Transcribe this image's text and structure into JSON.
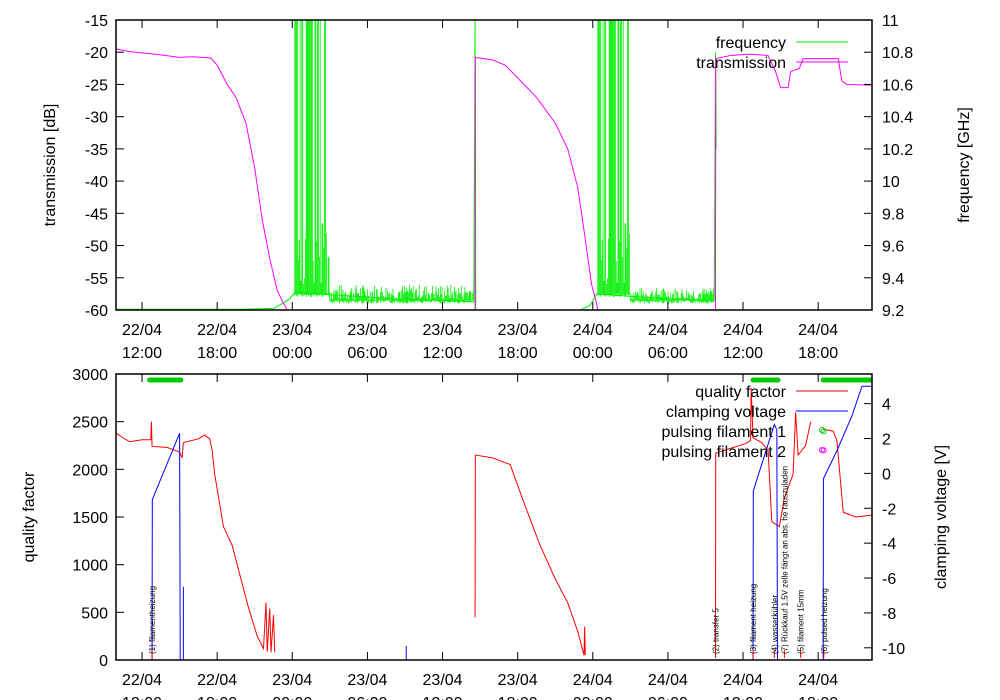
{
  "chart_data": [
    {
      "type": "line",
      "title": "",
      "xlabel": "",
      "x_unit": "hours since 22/04 00:00",
      "xlim": [
        9.92,
        70.3
      ],
      "x_ticks": [
        {
          "h": 12,
          "date": "22/04",
          "time": "12:00"
        },
        {
          "h": 18,
          "date": "22/04",
          "time": "18:00"
        },
        {
          "h": 24,
          "date": "23/04",
          "time": "00:00"
        },
        {
          "h": 30,
          "date": "23/04",
          "time": "06:00"
        },
        {
          "h": 36,
          "date": "23/04",
          "time": "12:00"
        },
        {
          "h": 42,
          "date": "23/04",
          "time": "18:00"
        },
        {
          "h": 48,
          "date": "24/04",
          "time": "00:00"
        },
        {
          "h": 54,
          "date": "24/04",
          "time": "06:00"
        },
        {
          "h": 60,
          "date": "24/04",
          "time": "12:00"
        },
        {
          "h": 66,
          "date": "24/04",
          "time": "18:00"
        }
      ],
      "ylabel": "transmission [dB]",
      "ylim": [
        -60,
        -15
      ],
      "y_ticks": [
        "-15",
        "-20",
        "-25",
        "-30",
        "-35",
        "-40",
        "-45",
        "-50",
        "-55",
        "-60"
      ],
      "y2label": "frequency [GHz]",
      "y2lim": [
        9.2,
        11
      ],
      "y2_ticks": [
        "11",
        "10.8",
        "10.6",
        "10.4",
        "10.2",
        "10",
        "9.8",
        "9.6",
        "9.4",
        "9.2"
      ],
      "legend_position": "top-right",
      "series": [
        {
          "name": "frequency",
          "axis": "y2",
          "color": "#00ee00",
          "segments": [
            [
              [
                9.92,
                9.205
              ],
              [
                20,
                9.205
              ],
              [
                22.5,
                9.21
              ],
              [
                23.2,
                9.24
              ],
              [
                23.8,
                9.27
              ],
              [
                24.2,
                9.31
              ],
              [
                26,
                9.3
              ],
              [
                28,
                9.29
              ],
              [
                32,
                9.27
              ],
              [
                36,
                9.26
              ],
              [
                38.5,
                9.25
              ],
              [
                38.6,
                11
              ],
              [
                38.65,
                9.2
              ],
              [
                47,
                9.2
              ],
              [
                47.8,
                9.23
              ],
              [
                48.3,
                9.3
              ],
              [
                50,
                9.29
              ],
              [
                54,
                9.27
              ],
              [
                57.7,
                9.26
              ],
              [
                57.8,
                10.8
              ],
              [
                57.85,
                10.2
              ]
            ]
          ],
          "bursts": [
            {
              "from": 24.2,
              "to": 27.0,
              "base": 9.3,
              "peak": 11
            },
            {
              "from": 27.0,
              "to": 38.5,
              "base": 9.26,
              "peak": 9.36
            },
            {
              "from": 48.4,
              "to": 51.0,
              "base": 9.3,
              "peak": 11
            },
            {
              "from": 51.0,
              "to": 57.7,
              "base": 9.26,
              "peak": 9.34
            }
          ]
        },
        {
          "name": "transmission",
          "axis": "y",
          "color": "#ff00ff",
          "segments": [
            [
              [
                9.92,
                -19.5
              ],
              [
                11,
                -19.9
              ],
              [
                13,
                -20.3
              ],
              [
                15,
                -20.8
              ],
              [
                16,
                -20.7
              ],
              [
                17.5,
                -20.9
              ],
              [
                18,
                -22
              ],
              [
                18.8,
                -25
              ],
              [
                19.5,
                -27
              ],
              [
                20.3,
                -31
              ],
              [
                21,
                -38
              ],
              [
                21.6,
                -46
              ],
              [
                22.2,
                -52
              ],
              [
                22.8,
                -57
              ],
              [
                23.3,
                -59
              ],
              [
                23.6,
                -60
              ]
            ],
            [
              [
                38.6,
                -60
              ],
              [
                38.62,
                -20.8
              ],
              [
                40,
                -21.2
              ],
              [
                41,
                -22
              ],
              [
                42,
                -24
              ],
              [
                43.5,
                -27
              ],
              [
                45,
                -31
              ],
              [
                46,
                -35
              ],
              [
                46.8,
                -41
              ],
              [
                47.4,
                -49
              ],
              [
                47.9,
                -56
              ],
              [
                48.3,
                -59
              ],
              [
                48.4,
                -60
              ]
            ],
            [
              [
                57.8,
                -60
              ],
              [
                57.82,
                -21
              ],
              [
                59,
                -20.5
              ],
              [
                60.5,
                -20.3
              ],
              [
                62,
                -20.5
              ],
              [
                62.6,
                -23
              ],
              [
                63,
                -25.5
              ],
              [
                63.6,
                -25.5
              ],
              [
                63.8,
                -23
              ],
              [
                64.5,
                -22.5
              ],
              [
                64.8,
                -21
              ],
              [
                65,
                -21
              ],
              [
                67.6,
                -21
              ],
              [
                67.9,
                -24.5
              ],
              [
                68.3,
                -25
              ],
              [
                70.3,
                -25.1
              ]
            ]
          ]
        }
      ]
    },
    {
      "type": "line",
      "title": "",
      "xlabel": "",
      "xlim": [
        9.92,
        70.3
      ],
      "ylabel": "quality factor",
      "ylim": [
        0,
        3000
      ],
      "y_ticks": [
        "0",
        "500",
        "1000",
        "1500",
        "2000",
        "2500",
        "3000"
      ],
      "y2label": "clamping voltage [V]",
      "y2lim": [
        -10.7,
        5.7
      ],
      "y2_ticks": [
        "4",
        "2",
        "0",
        "-2",
        "-4",
        "-6",
        "-8",
        "-10"
      ],
      "legend_position": "top-right",
      "series": [
        {
          "name": "quality factor",
          "axis": "y",
          "color": "#ff0000",
          "segments": [
            [
              [
                9.92,
                2380
              ],
              [
                10.5,
                2330
              ],
              [
                11,
                2290
              ],
              [
                12,
                2310
              ],
              [
                12.7,
                2310
              ],
              [
                12.75,
                2500
              ],
              [
                12.8,
                2240
              ],
              [
                14,
                2230
              ],
              [
                15,
                2180
              ],
              [
                15.2,
                2120
              ],
              [
                15.3,
                2280
              ],
              [
                16.5,
                2320
              ],
              [
                17,
                2360
              ],
              [
                17.4,
                2320
              ],
              [
                17.6,
                2200
              ],
              [
                17.8,
                1950
              ],
              [
                18.5,
                1400
              ],
              [
                19.2,
                1200
              ],
              [
                19.8,
                900
              ],
              [
                20.5,
                550
              ],
              [
                21.2,
                250
              ],
              [
                21.7,
                120
              ],
              [
                21.9,
                600
              ],
              [
                22,
                90
              ],
              [
                22.2,
                540
              ],
              [
                22.3,
                80
              ],
              [
                22.5,
                470
              ],
              [
                22.6,
                80
              ]
            ],
            [
              [
                38.6,
                450
              ],
              [
                38.62,
                2150
              ],
              [
                40,
                2120
              ],
              [
                41.4,
                2050
              ],
              [
                42.5,
                1650
              ],
              [
                43.8,
                1200
              ],
              [
                45,
                850
              ],
              [
                46,
                600
              ],
              [
                46.8,
                300
              ],
              [
                47.3,
                50
              ],
              [
                47.35,
                350
              ],
              [
                47.4,
                50
              ]
            ],
            [
              [
                57.8,
                30
              ],
              [
                57.82,
                2170
              ],
              [
                59,
                2220
              ],
              [
                60.2,
                2270
              ],
              [
                60.6,
                2300
              ],
              [
                60.65,
                2850
              ],
              [
                60.8,
                2330
              ],
              [
                61.5,
                2280
              ],
              [
                62,
                2200
              ],
              [
                62.3,
                1450
              ],
              [
                62.9,
                1400
              ],
              [
                63.3,
                1700
              ],
              [
                64,
                1950
              ],
              [
                64.2,
                2600
              ],
              [
                64.4,
                2150
              ],
              [
                65,
                2250
              ],
              [
                65.4,
                2500
              ]
            ],
            [
              [
                66.4,
                2420
              ],
              [
                67.2,
                2400
              ],
              [
                67.5,
                2300
              ],
              [
                68.0,
                1550
              ],
              [
                69,
                1500
              ],
              [
                70.3,
                1520
              ]
            ]
          ]
        },
        {
          "name": "clamping voltage",
          "axis": "y2",
          "color": "#0000ff",
          "segments": [
            [
              [
                12.8,
                -10.7
              ],
              [
                12.82,
                -1.5
              ],
              [
                15.0,
                2.3
              ],
              [
                15.05,
                -10.7
              ]
            ],
            [
              [
                15.3,
                -10.7
              ],
              [
                15.3,
                -6.5
              ]
            ],
            [
              [
                33.1,
                -10.7
              ],
              [
                33.1,
                -9.9
              ]
            ],
            [
              [
                60.8,
                -10.7
              ],
              [
                60.82,
                -1.0
              ],
              [
                62.5,
                2.8
              ],
              [
                62.7,
                2.5
              ],
              [
                62.75,
                -10.7
              ]
            ],
            [
              [
                66.4,
                -10.7
              ],
              [
                66.42,
                -0.3
              ],
              [
                67.5,
                1.3
              ],
              [
                68.7,
                3.3
              ],
              [
                69.5,
                5.0
              ],
              [
                70.3,
                5.0
              ]
            ]
          ]
        },
        {
          "name": "pulsing filament 1",
          "marker": "circle",
          "color": "#00cc00",
          "points": [
            [
              66.45,
              2400
            ]
          ],
          "bars": [
            [
              12.6,
              15.1
            ],
            [
              60.8,
              62.8
            ],
            [
              66.4,
              70.3
            ]
          ]
        },
        {
          "name": "pulsing filament 2",
          "marker": "circle",
          "color": "#ff00ff",
          "points": [
            [
              66.45,
              2200
            ]
          ]
        }
      ],
      "annotations": [
        {
          "h": 12.8,
          "text": "(1) filamentheizung"
        },
        {
          "h": 57.8,
          "text": "(2) transfer 5"
        },
        {
          "h": 60.8,
          "text": "(3) filament heizung"
        },
        {
          "h": 62.5,
          "text": "(4) wasserkühler"
        },
        {
          "h": 63.3,
          "text": "(7) Rückkauf 1.5V zelle fängt an abs. he rauszuladen"
        },
        {
          "h": 64.6,
          "text": "(5) filament 15mm"
        },
        {
          "h": 66.45,
          "text": "(6) pulsed heizung"
        }
      ]
    }
  ]
}
